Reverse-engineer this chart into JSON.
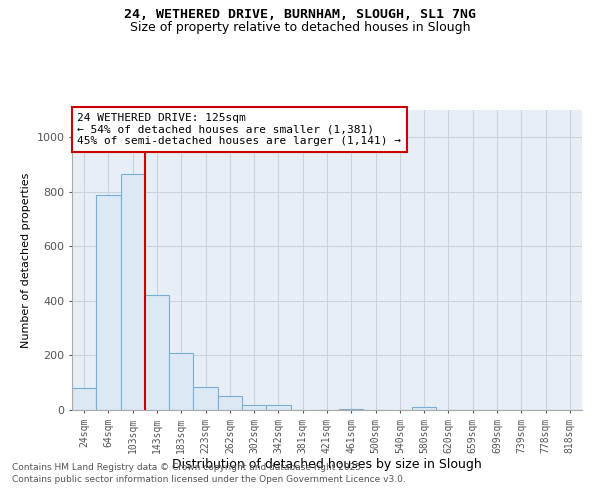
{
  "title_line1": "24, WETHERED DRIVE, BURNHAM, SLOUGH, SL1 7NG",
  "title_line2": "Size of property relative to detached houses in Slough",
  "xlabel": "Distribution of detached houses by size in Slough",
  "ylabel": "Number of detached properties",
  "footer_line1": "Contains HM Land Registry data © Crown copyright and database right 2025.",
  "footer_line2": "Contains public sector information licensed under the Open Government Licence v3.0.",
  "annotation_line1": "24 WETHERED DRIVE: 125sqm",
  "annotation_line2": "← 54% of detached houses are smaller (1,381)",
  "annotation_line3": "45% of semi-detached houses are larger (1,141) →",
  "property_bin_index": 2,
  "bar_fill_color": "#dce9f5",
  "bar_edge_color": "#7aafd4",
  "vline_color": "#cc0000",
  "annotation_box_edge_color": "#cc0000",
  "background_color": "#e8eef5",
  "grid_color": "#c8d4e0",
  "categories": [
    "24sqm",
    "64sqm",
    "103sqm",
    "143sqm",
    "183sqm",
    "223sqm",
    "262sqm",
    "302sqm",
    "342sqm",
    "381sqm",
    "421sqm",
    "461sqm",
    "500sqm",
    "540sqm",
    "580sqm",
    "620sqm",
    "659sqm",
    "699sqm",
    "739sqm",
    "778sqm",
    "818sqm"
  ],
  "values": [
    80,
    790,
    865,
    420,
    210,
    85,
    50,
    20,
    20,
    0,
    0,
    5,
    0,
    0,
    10,
    0,
    0,
    0,
    0,
    0,
    0
  ],
  "ylim": [
    0,
    1100
  ],
  "yticks": [
    0,
    200,
    400,
    600,
    800,
    1000
  ]
}
